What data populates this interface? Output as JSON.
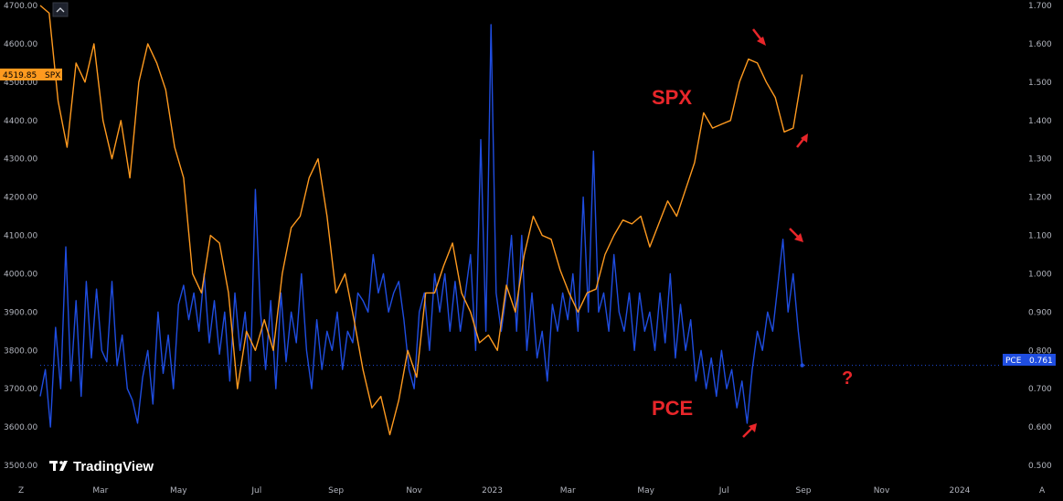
{
  "brand": {
    "name": "TradingView"
  },
  "annotations": {
    "spx_label": "SPX",
    "pce_label": "PCE",
    "question": "?"
  },
  "corner_labels": {
    "bottom_left": "Z",
    "bottom_right": "A"
  },
  "colors": {
    "background": "#000000",
    "spx": "#ff9a1f",
    "pce": "#1f4de0",
    "annotation": "#e8262a",
    "axis_text": "#b2b5be"
  },
  "chart_data": {
    "type": "line",
    "left_axis": {
      "series": "SPX",
      "range": [
        3500,
        4700
      ],
      "ticks": [
        "3500.00",
        "3600.00",
        "3700.00",
        "3800.00",
        "3900.00",
        "4000.00",
        "4100.00",
        "4200.00",
        "4300.00",
        "4400.00",
        "4500.00",
        "4600.00",
        "4700.00"
      ]
    },
    "right_axis": {
      "series": "PCE",
      "range": [
        0.5,
        1.7
      ],
      "ticks": [
        "0.500",
        "0.600",
        "0.700",
        "0.800",
        "0.900",
        "1.000",
        "1.100",
        "1.200",
        "1.300",
        "1.400",
        "1.500",
        "1.600",
        "1.700"
      ]
    },
    "x_axis": {
      "range": [
        "2022-01-13",
        "2024-01-31"
      ],
      "ticks": [
        {
          "label": "Mar",
          "date": "2022-03-01"
        },
        {
          "label": "May",
          "date": "2022-05-01"
        },
        {
          "label": "Jul",
          "date": "2022-07-01"
        },
        {
          "label": "Sep",
          "date": "2022-09-01"
        },
        {
          "label": "Nov",
          "date": "2022-11-01"
        },
        {
          "label": "2023",
          "date": "2023-01-01"
        },
        {
          "label": "Mar",
          "date": "2023-03-01"
        },
        {
          "label": "May",
          "date": "2023-05-01"
        },
        {
          "label": "Jul",
          "date": "2023-07-01"
        },
        {
          "label": "Sep",
          "date": "2023-09-01"
        },
        {
          "label": "Nov",
          "date": "2023-11-01"
        },
        {
          "label": "2024",
          "date": "2024-01-01"
        }
      ]
    },
    "last_values": {
      "SPX": {
        "label": "SPX",
        "value": "4519.85"
      },
      "PCE": {
        "label": "PCE",
        "value": "0.761"
      }
    },
    "series": [
      {
        "name": "SPX",
        "axis": "left",
        "points": [
          [
            "2022-01-13",
            4700
          ],
          [
            "2022-01-20",
            4680
          ],
          [
            "2022-01-27",
            4450
          ],
          [
            "2022-02-03",
            4330
          ],
          [
            "2022-02-10",
            4550
          ],
          [
            "2022-02-17",
            4500
          ],
          [
            "2022-02-24",
            4600
          ],
          [
            "2022-03-03",
            4400
          ],
          [
            "2022-03-10",
            4300
          ],
          [
            "2022-03-17",
            4400
          ],
          [
            "2022-03-24",
            4250
          ],
          [
            "2022-03-31",
            4500
          ],
          [
            "2022-04-07",
            4600
          ],
          [
            "2022-04-14",
            4550
          ],
          [
            "2022-04-21",
            4480
          ],
          [
            "2022-04-28",
            4330
          ],
          [
            "2022-05-05",
            4250
          ],
          [
            "2022-05-12",
            4000
          ],
          [
            "2022-05-19",
            3950
          ],
          [
            "2022-05-26",
            4100
          ],
          [
            "2022-06-02",
            4080
          ],
          [
            "2022-06-09",
            3950
          ],
          [
            "2022-06-16",
            3700
          ],
          [
            "2022-06-23",
            3850
          ],
          [
            "2022-06-30",
            3800
          ],
          [
            "2022-07-07",
            3880
          ],
          [
            "2022-07-14",
            3800
          ],
          [
            "2022-07-21",
            4000
          ],
          [
            "2022-07-28",
            4120
          ],
          [
            "2022-08-04",
            4150
          ],
          [
            "2022-08-11",
            4250
          ],
          [
            "2022-08-18",
            4300
          ],
          [
            "2022-08-25",
            4150
          ],
          [
            "2022-09-01",
            3950
          ],
          [
            "2022-09-08",
            4000
          ],
          [
            "2022-09-15",
            3880
          ],
          [
            "2022-09-22",
            3750
          ],
          [
            "2022-09-29",
            3650
          ],
          [
            "2022-10-06",
            3680
          ],
          [
            "2022-10-13",
            3580
          ],
          [
            "2022-10-20",
            3670
          ],
          [
            "2022-10-27",
            3800
          ],
          [
            "2022-11-03",
            3730
          ],
          [
            "2022-11-10",
            3950
          ],
          [
            "2022-11-17",
            3950
          ],
          [
            "2022-11-24",
            4020
          ],
          [
            "2022-12-01",
            4080
          ],
          [
            "2022-12-08",
            3950
          ],
          [
            "2022-12-15",
            3900
          ],
          [
            "2022-12-22",
            3820
          ],
          [
            "2022-12-29",
            3840
          ],
          [
            "2023-01-05",
            3800
          ],
          [
            "2023-01-12",
            3970
          ],
          [
            "2023-01-19",
            3900
          ],
          [
            "2023-01-26",
            4050
          ],
          [
            "2023-02-02",
            4150
          ],
          [
            "2023-02-09",
            4100
          ],
          [
            "2023-02-16",
            4090
          ],
          [
            "2023-02-23",
            4010
          ],
          [
            "2023-03-02",
            3950
          ],
          [
            "2023-03-09",
            3900
          ],
          [
            "2023-03-16",
            3950
          ],
          [
            "2023-03-23",
            3960
          ],
          [
            "2023-03-30",
            4050
          ],
          [
            "2023-04-06",
            4100
          ],
          [
            "2023-04-13",
            4140
          ],
          [
            "2023-04-20",
            4130
          ],
          [
            "2023-04-27",
            4150
          ],
          [
            "2023-05-04",
            4070
          ],
          [
            "2023-05-11",
            4130
          ],
          [
            "2023-05-18",
            4190
          ],
          [
            "2023-05-25",
            4150
          ],
          [
            "2023-06-01",
            4220
          ],
          [
            "2023-06-08",
            4290
          ],
          [
            "2023-06-15",
            4420
          ],
          [
            "2023-06-22",
            4380
          ],
          [
            "2023-06-29",
            4390
          ],
          [
            "2023-07-06",
            4400
          ],
          [
            "2023-07-13",
            4500
          ],
          [
            "2023-07-20",
            4560
          ],
          [
            "2023-07-27",
            4550
          ],
          [
            "2023-08-03",
            4500
          ],
          [
            "2023-08-10",
            4460
          ],
          [
            "2023-08-17",
            4370
          ],
          [
            "2023-08-24",
            4380
          ],
          [
            "2023-08-31",
            4519.85
          ]
        ]
      },
      {
        "name": "PCE",
        "axis": "right",
        "points": [
          [
            "2022-01-13",
            0.68
          ],
          [
            "2022-01-17",
            0.75
          ],
          [
            "2022-01-21",
            0.6
          ],
          [
            "2022-01-25",
            0.86
          ],
          [
            "2022-01-29",
            0.7
          ],
          [
            "2022-02-02",
            1.07
          ],
          [
            "2022-02-06",
            0.72
          ],
          [
            "2022-02-10",
            0.93
          ],
          [
            "2022-02-14",
            0.68
          ],
          [
            "2022-02-18",
            0.98
          ],
          [
            "2022-02-22",
            0.78
          ],
          [
            "2022-02-26",
            0.96
          ],
          [
            "2022-03-02",
            0.8
          ],
          [
            "2022-03-06",
            0.77
          ],
          [
            "2022-03-10",
            0.98
          ],
          [
            "2022-03-14",
            0.76
          ],
          [
            "2022-03-18",
            0.84
          ],
          [
            "2022-03-22",
            0.7
          ],
          [
            "2022-03-26",
            0.67
          ],
          [
            "2022-03-30",
            0.61
          ],
          [
            "2022-04-03",
            0.73
          ],
          [
            "2022-04-07",
            0.8
          ],
          [
            "2022-04-11",
            0.66
          ],
          [
            "2022-04-15",
            0.9
          ],
          [
            "2022-04-19",
            0.74
          ],
          [
            "2022-04-23",
            0.84
          ],
          [
            "2022-04-27",
            0.7
          ],
          [
            "2022-05-01",
            0.92
          ],
          [
            "2022-05-05",
            0.97
          ],
          [
            "2022-05-09",
            0.88
          ],
          [
            "2022-05-13",
            0.95
          ],
          [
            "2022-05-17",
            0.85
          ],
          [
            "2022-05-21",
            1.0
          ],
          [
            "2022-05-25",
            0.82
          ],
          [
            "2022-05-29",
            0.93
          ],
          [
            "2022-06-02",
            0.79
          ],
          [
            "2022-06-06",
            0.9
          ],
          [
            "2022-06-10",
            0.72
          ],
          [
            "2022-06-14",
            0.95
          ],
          [
            "2022-06-18",
            0.8
          ],
          [
            "2022-06-22",
            0.9
          ],
          [
            "2022-06-26",
            0.72
          ],
          [
            "2022-06-30",
            1.22
          ],
          [
            "2022-07-04",
            0.9
          ],
          [
            "2022-07-08",
            0.75
          ],
          [
            "2022-07-12",
            0.93
          ],
          [
            "2022-07-16",
            0.7
          ],
          [
            "2022-07-20",
            0.95
          ],
          [
            "2022-07-24",
            0.77
          ],
          [
            "2022-07-28",
            0.9
          ],
          [
            "2022-08-01",
            0.82
          ],
          [
            "2022-08-05",
            1.0
          ],
          [
            "2022-08-09",
            0.8
          ],
          [
            "2022-08-13",
            0.7
          ],
          [
            "2022-08-17",
            0.88
          ],
          [
            "2022-08-21",
            0.75
          ],
          [
            "2022-08-25",
            0.85
          ],
          [
            "2022-08-29",
            0.8
          ],
          [
            "2022-09-02",
            0.9
          ],
          [
            "2022-09-06",
            0.75
          ],
          [
            "2022-09-10",
            0.85
          ],
          [
            "2022-09-14",
            0.82
          ],
          [
            "2022-09-18",
            0.95
          ],
          [
            "2022-09-22",
            0.93
          ],
          [
            "2022-09-26",
            0.9
          ],
          [
            "2022-09-30",
            1.05
          ],
          [
            "2022-10-04",
            0.95
          ],
          [
            "2022-10-08",
            1.0
          ],
          [
            "2022-10-12",
            0.9
          ],
          [
            "2022-10-16",
            0.95
          ],
          [
            "2022-10-20",
            0.98
          ],
          [
            "2022-10-24",
            0.88
          ],
          [
            "2022-10-28",
            0.75
          ],
          [
            "2022-11-01",
            0.7
          ],
          [
            "2022-11-05",
            0.9
          ],
          [
            "2022-11-09",
            0.95
          ],
          [
            "2022-11-13",
            0.8
          ],
          [
            "2022-11-17",
            1.0
          ],
          [
            "2022-11-21",
            0.9
          ],
          [
            "2022-11-25",
            1.0
          ],
          [
            "2022-11-29",
            0.85
          ],
          [
            "2022-12-03",
            0.98
          ],
          [
            "2022-12-07",
            0.85
          ],
          [
            "2022-12-11",
            0.95
          ],
          [
            "2022-12-15",
            1.05
          ],
          [
            "2022-12-19",
            0.8
          ],
          [
            "2022-12-23",
            1.35
          ],
          [
            "2022-12-27",
            0.85
          ],
          [
            "2022-12-31",
            1.65
          ],
          [
            "2023-01-04",
            0.95
          ],
          [
            "2023-01-08",
            0.85
          ],
          [
            "2023-01-12",
            0.95
          ],
          [
            "2023-01-16",
            1.1
          ],
          [
            "2023-01-20",
            0.85
          ],
          [
            "2023-01-24",
            1.1
          ],
          [
            "2023-01-28",
            0.8
          ],
          [
            "2023-02-01",
            0.95
          ],
          [
            "2023-02-05",
            0.78
          ],
          [
            "2023-02-09",
            0.85
          ],
          [
            "2023-02-13",
            0.72
          ],
          [
            "2023-02-17",
            0.92
          ],
          [
            "2023-02-21",
            0.85
          ],
          [
            "2023-02-25",
            0.95
          ],
          [
            "2023-03-01",
            0.88
          ],
          [
            "2023-03-05",
            1.0
          ],
          [
            "2023-03-09",
            0.85
          ],
          [
            "2023-03-13",
            1.2
          ],
          [
            "2023-03-17",
            0.9
          ],
          [
            "2023-03-21",
            1.32
          ],
          [
            "2023-03-25",
            0.9
          ],
          [
            "2023-03-29",
            0.95
          ],
          [
            "2023-04-02",
            0.85
          ],
          [
            "2023-04-06",
            1.05
          ],
          [
            "2023-04-10",
            0.9
          ],
          [
            "2023-04-14",
            0.85
          ],
          [
            "2023-04-18",
            0.95
          ],
          [
            "2023-04-22",
            0.8
          ],
          [
            "2023-04-26",
            0.95
          ],
          [
            "2023-04-30",
            0.85
          ],
          [
            "2023-05-04",
            0.9
          ],
          [
            "2023-05-08",
            0.8
          ],
          [
            "2023-05-12",
            0.95
          ],
          [
            "2023-05-16",
            0.82
          ],
          [
            "2023-05-20",
            1.0
          ],
          [
            "2023-05-24",
            0.78
          ],
          [
            "2023-05-28",
            0.92
          ],
          [
            "2023-06-01",
            0.8
          ],
          [
            "2023-06-05",
            0.88
          ],
          [
            "2023-06-09",
            0.72
          ],
          [
            "2023-06-13",
            0.8
          ],
          [
            "2023-06-17",
            0.7
          ],
          [
            "2023-06-21",
            0.78
          ],
          [
            "2023-06-25",
            0.68
          ],
          [
            "2023-06-29",
            0.8
          ],
          [
            "2023-07-03",
            0.7
          ],
          [
            "2023-07-07",
            0.75
          ],
          [
            "2023-07-11",
            0.65
          ],
          [
            "2023-07-15",
            0.72
          ],
          [
            "2023-07-19",
            0.61
          ],
          [
            "2023-07-23",
            0.75
          ],
          [
            "2023-07-27",
            0.85
          ],
          [
            "2023-07-31",
            0.8
          ],
          [
            "2023-08-04",
            0.9
          ],
          [
            "2023-08-08",
            0.85
          ],
          [
            "2023-08-12",
            0.97
          ],
          [
            "2023-08-16",
            1.09
          ],
          [
            "2023-08-20",
            0.9
          ],
          [
            "2023-08-24",
            1.0
          ],
          [
            "2023-08-28",
            0.85
          ],
          [
            "2023-08-31",
            0.761
          ]
        ]
      }
    ]
  }
}
